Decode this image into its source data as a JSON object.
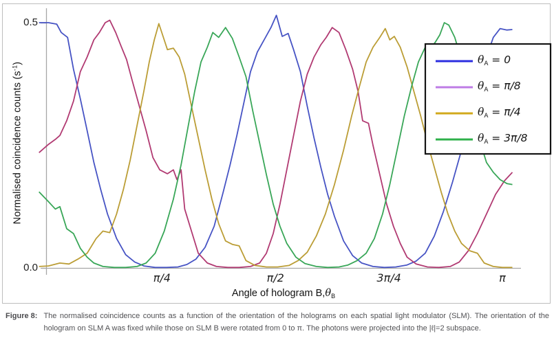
{
  "figure": {
    "label": "Figure 8:",
    "caption": "The normalised coincidence counts as a function of the orientation of the holograms on each spatial light modulator (SLM). The orientation of the hologram on SLM A was fixed while those on SLM B were rotated from 0 to π. The photons were projected into the |ℓ|=2 subspace."
  },
  "colors": {
    "figure_border": "#bdbdbd",
    "axis": "#a6a6a6",
    "legend_border": "#141414",
    "legend_bg": "#ffffff",
    "text": "#1f1f1f",
    "caption_text": "#515154"
  },
  "chart_data": {
    "type": "line",
    "title": "",
    "xlabel": {
      "prefix": "Angle of hologram B,",
      "sym": "θ",
      "sub": "B"
    },
    "ylabel": {
      "main": "Normalised coincidence counts (s",
      "sup": "-1",
      "close": ")"
    },
    "x_unit": "radians, fraction of π",
    "xlim": [
      0,
      1
    ],
    "ylim": [
      0,
      0.5
    ],
    "grid": false,
    "legend_position": "top-right",
    "xticks": [
      {
        "t": 0.25,
        "label": "π/4"
      },
      {
        "t": 0.5,
        "label": "π/2"
      },
      {
        "t": 0.75,
        "label": "3π/4"
      },
      {
        "t": 1.0,
        "label": "π"
      }
    ],
    "yticks": [
      {
        "v": 0.0,
        "label": "0.0"
      },
      {
        "v": 0.5,
        "label": "0.5"
      }
    ],
    "series": [
      {
        "name": "theta_A = 0",
        "sym": "θ",
        "sub": "A",
        "value": "= 0",
        "color": "#4653c4",
        "legend_color": "#2b2de0",
        "points": [
          [
            -0.021,
            0.5
          ],
          [
            0.0,
            0.5
          ],
          [
            0.018,
            0.497
          ],
          [
            0.028,
            0.48
          ],
          [
            0.042,
            0.47
          ],
          [
            0.055,
            0.405
          ],
          [
            0.07,
            0.345
          ],
          [
            0.085,
            0.28
          ],
          [
            0.1,
            0.215
          ],
          [
            0.115,
            0.16
          ],
          [
            0.13,
            0.11
          ],
          [
            0.15,
            0.06
          ],
          [
            0.17,
            0.027
          ],
          [
            0.19,
            0.012
          ],
          [
            0.21,
            0.004
          ],
          [
            0.235,
            0.001
          ],
          [
            0.26,
            0.001
          ],
          [
            0.285,
            0.002
          ],
          [
            0.305,
            0.007
          ],
          [
            0.325,
            0.018
          ],
          [
            0.345,
            0.042
          ],
          [
            0.365,
            0.085
          ],
          [
            0.385,
            0.155
          ],
          [
            0.4,
            0.21
          ],
          [
            0.415,
            0.27
          ],
          [
            0.43,
            0.335
          ],
          [
            0.445,
            0.4
          ],
          [
            0.46,
            0.44
          ],
          [
            0.475,
            0.465
          ],
          [
            0.49,
            0.49
          ],
          [
            0.502,
            0.515
          ],
          [
            0.515,
            0.472
          ],
          [
            0.528,
            0.478
          ],
          [
            0.54,
            0.445
          ],
          [
            0.555,
            0.4
          ],
          [
            0.57,
            0.33
          ],
          [
            0.585,
            0.265
          ],
          [
            0.6,
            0.205
          ],
          [
            0.615,
            0.15
          ],
          [
            0.63,
            0.105
          ],
          [
            0.65,
            0.055
          ],
          [
            0.67,
            0.025
          ],
          [
            0.69,
            0.01
          ],
          [
            0.715,
            0.003
          ],
          [
            0.74,
            0.001
          ],
          [
            0.765,
            0.002
          ],
          [
            0.79,
            0.006
          ],
          [
            0.81,
            0.014
          ],
          [
            0.83,
            0.03
          ],
          [
            0.85,
            0.065
          ],
          [
            0.87,
            0.115
          ],
          [
            0.89,
            0.175
          ],
          [
            0.91,
            0.24
          ],
          [
            0.93,
            0.31
          ],
          [
            0.95,
            0.38
          ],
          [
            0.965,
            0.43
          ],
          [
            0.98,
            0.47
          ],
          [
            0.995,
            0.488
          ],
          [
            1.01,
            0.485
          ],
          [
            1.022,
            0.486
          ]
        ]
      },
      {
        "name": "theta_A = pi/8",
        "sym": "θ",
        "sub": "A",
        "value": "= π/8",
        "color": "#b13a72",
        "legend_color": "#be7ce5",
        "points": [
          [
            -0.021,
            0.235
          ],
          [
            0.0,
            0.252
          ],
          [
            0.015,
            0.262
          ],
          [
            0.025,
            0.27
          ],
          [
            0.04,
            0.3
          ],
          [
            0.055,
            0.34
          ],
          [
            0.07,
            0.4
          ],
          [
            0.085,
            0.43
          ],
          [
            0.1,
            0.465
          ],
          [
            0.112,
            0.48
          ],
          [
            0.125,
            0.5
          ],
          [
            0.135,
            0.505
          ],
          [
            0.148,
            0.48
          ],
          [
            0.16,
            0.452
          ],
          [
            0.172,
            0.425
          ],
          [
            0.185,
            0.38
          ],
          [
            0.2,
            0.33
          ],
          [
            0.215,
            0.28
          ],
          [
            0.23,
            0.225
          ],
          [
            0.245,
            0.2
          ],
          [
            0.262,
            0.192
          ],
          [
            0.275,
            0.2
          ],
          [
            0.283,
            0.18
          ],
          [
            0.292,
            0.2
          ],
          [
            0.3,
            0.12
          ],
          [
            0.315,
            0.075
          ],
          [
            0.33,
            0.03
          ],
          [
            0.35,
            0.01
          ],
          [
            0.37,
            0.003
          ],
          [
            0.395,
            0.001
          ],
          [
            0.42,
            0.001
          ],
          [
            0.445,
            0.003
          ],
          [
            0.465,
            0.01
          ],
          [
            0.48,
            0.03
          ],
          [
            0.495,
            0.07
          ],
          [
            0.51,
            0.13
          ],
          [
            0.525,
            0.2
          ],
          [
            0.54,
            0.27
          ],
          [
            0.555,
            0.34
          ],
          [
            0.57,
            0.395
          ],
          [
            0.585,
            0.43
          ],
          [
            0.6,
            0.455
          ],
          [
            0.612,
            0.47
          ],
          [
            0.625,
            0.49
          ],
          [
            0.64,
            0.48
          ],
          [
            0.655,
            0.445
          ],
          [
            0.67,
            0.405
          ],
          [
            0.682,
            0.36
          ],
          [
            0.692,
            0.3
          ],
          [
            0.705,
            0.295
          ],
          [
            0.715,
            0.25
          ],
          [
            0.73,
            0.19
          ],
          [
            0.745,
            0.13
          ],
          [
            0.76,
            0.085
          ],
          [
            0.775,
            0.05
          ],
          [
            0.79,
            0.022
          ],
          [
            0.81,
            0.008
          ],
          [
            0.835,
            0.002
          ],
          [
            0.86,
            0.001
          ],
          [
            0.885,
            0.003
          ],
          [
            0.905,
            0.012
          ],
          [
            0.925,
            0.035
          ],
          [
            0.945,
            0.07
          ],
          [
            0.965,
            0.11
          ],
          [
            0.985,
            0.15
          ],
          [
            1.005,
            0.178
          ],
          [
            1.022,
            0.195
          ]
        ]
      },
      {
        "name": "theta_A = pi/4",
        "sym": "θ",
        "sub": "A",
        "value": "= π/4",
        "color": "#bb9d35",
        "legend_color": "#d2a91c",
        "points": [
          [
            -0.021,
            0.003
          ],
          [
            0.0,
            0.004
          ],
          [
            0.025,
            0.01
          ],
          [
            0.045,
            0.008
          ],
          [
            0.065,
            0.018
          ],
          [
            0.085,
            0.03
          ],
          [
            0.105,
            0.06
          ],
          [
            0.12,
            0.075
          ],
          [
            0.135,
            0.072
          ],
          [
            0.15,
            0.11
          ],
          [
            0.165,
            0.16
          ],
          [
            0.18,
            0.22
          ],
          [
            0.195,
            0.29
          ],
          [
            0.21,
            0.36
          ],
          [
            0.222,
            0.42
          ],
          [
            0.233,
            0.465
          ],
          [
            0.243,
            0.498
          ],
          [
            0.253,
            0.47
          ],
          [
            0.262,
            0.445
          ],
          [
            0.275,
            0.448
          ],
          [
            0.288,
            0.43
          ],
          [
            0.3,
            0.395
          ],
          [
            0.315,
            0.33
          ],
          [
            0.33,
            0.265
          ],
          [
            0.345,
            0.2
          ],
          [
            0.36,
            0.14
          ],
          [
            0.375,
            0.09
          ],
          [
            0.39,
            0.055
          ],
          [
            0.405,
            0.048
          ],
          [
            0.42,
            0.045
          ],
          [
            0.435,
            0.015
          ],
          [
            0.455,
            0.005
          ],
          [
            0.48,
            0.002
          ],
          [
            0.505,
            0.002
          ],
          [
            0.53,
            0.005
          ],
          [
            0.55,
            0.015
          ],
          [
            0.57,
            0.032
          ],
          [
            0.59,
            0.065
          ],
          [
            0.61,
            0.11
          ],
          [
            0.63,
            0.17
          ],
          [
            0.65,
            0.24
          ],
          [
            0.668,
            0.31
          ],
          [
            0.685,
            0.37
          ],
          [
            0.7,
            0.42
          ],
          [
            0.715,
            0.45
          ],
          [
            0.73,
            0.47
          ],
          [
            0.742,
            0.488
          ],
          [
            0.752,
            0.465
          ],
          [
            0.762,
            0.472
          ],
          [
            0.775,
            0.45
          ],
          [
            0.79,
            0.41
          ],
          [
            0.805,
            0.36
          ],
          [
            0.82,
            0.31
          ],
          [
            0.835,
            0.255
          ],
          [
            0.85,
            0.205
          ],
          [
            0.865,
            0.155
          ],
          [
            0.88,
            0.11
          ],
          [
            0.895,
            0.075
          ],
          [
            0.91,
            0.05
          ],
          [
            0.928,
            0.035
          ],
          [
            0.945,
            0.03
          ],
          [
            0.96,
            0.01
          ],
          [
            0.98,
            0.003
          ],
          [
            1.0,
            0.001
          ],
          [
            1.022,
            0.001
          ]
        ]
      },
      {
        "name": "theta_A = 3pi/8",
        "sym": "θ",
        "sub": "A",
        "value": "= 3π/8",
        "color": "#38a657",
        "legend_color": "#2eb04a",
        "points": [
          [
            -0.021,
            0.155
          ],
          [
            0.0,
            0.135
          ],
          [
            0.015,
            0.12
          ],
          [
            0.025,
            0.125
          ],
          [
            0.04,
            0.08
          ],
          [
            0.055,
            0.07
          ],
          [
            0.07,
            0.04
          ],
          [
            0.085,
            0.022
          ],
          [
            0.1,
            0.01
          ],
          [
            0.12,
            0.003
          ],
          [
            0.145,
            0.001
          ],
          [
            0.17,
            0.001
          ],
          [
            0.195,
            0.003
          ],
          [
            0.215,
            0.01
          ],
          [
            0.235,
            0.03
          ],
          [
            0.255,
            0.075
          ],
          [
            0.275,
            0.14
          ],
          [
            0.292,
            0.21
          ],
          [
            0.308,
            0.29
          ],
          [
            0.322,
            0.36
          ],
          [
            0.336,
            0.42
          ],
          [
            0.35,
            0.45
          ],
          [
            0.362,
            0.48
          ],
          [
            0.375,
            0.47
          ],
          [
            0.39,
            0.49
          ],
          [
            0.405,
            0.468
          ],
          [
            0.42,
            0.43
          ],
          [
            0.435,
            0.39
          ],
          [
            0.45,
            0.32
          ],
          [
            0.465,
            0.255
          ],
          [
            0.48,
            0.19
          ],
          [
            0.495,
            0.13
          ],
          [
            0.51,
            0.085
          ],
          [
            0.525,
            0.05
          ],
          [
            0.545,
            0.022
          ],
          [
            0.565,
            0.009
          ],
          [
            0.59,
            0.003
          ],
          [
            0.615,
            0.001
          ],
          [
            0.64,
            0.002
          ],
          [
            0.66,
            0.006
          ],
          [
            0.68,
            0.015
          ],
          [
            0.7,
            0.03
          ],
          [
            0.718,
            0.06
          ],
          [
            0.736,
            0.11
          ],
          [
            0.752,
            0.17
          ],
          [
            0.768,
            0.24
          ],
          [
            0.784,
            0.31
          ],
          [
            0.8,
            0.37
          ],
          [
            0.815,
            0.42
          ],
          [
            0.83,
            0.45
          ],
          [
            0.842,
            0.448
          ],
          [
            0.852,
            0.46
          ],
          [
            0.862,
            0.475
          ],
          [
            0.872,
            0.5
          ],
          [
            0.882,
            0.495
          ],
          [
            0.895,
            0.47
          ],
          [
            0.908,
            0.43
          ],
          [
            0.922,
            0.38
          ],
          [
            0.936,
            0.32
          ],
          [
            0.95,
            0.26
          ],
          [
            0.965,
            0.215
          ],
          [
            0.98,
            0.195
          ],
          [
            0.995,
            0.18
          ],
          [
            1.01,
            0.172
          ],
          [
            1.022,
            0.17
          ]
        ]
      }
    ]
  }
}
